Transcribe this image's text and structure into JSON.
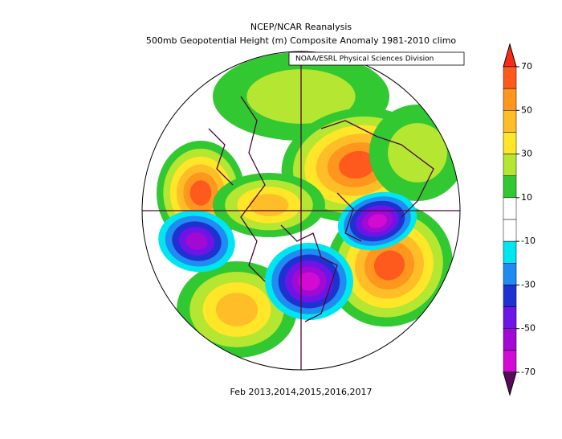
{
  "header": {
    "title": "NCEP/NCAR Reanalysis",
    "subtitle": "500mb Geopotential Height (m) Composite Anomaly 1981-2010 climo",
    "credit": "NOAA/ESRL Physical Sciences Division"
  },
  "footer": {
    "period": "Feb 2013,2014,2015,2016,2017"
  },
  "colorbar": {
    "range": [
      -70,
      70
    ],
    "ticks": [
      70,
      50,
      30,
      10,
      -10,
      -30,
      -50,
      -70
    ],
    "levels": [
      70,
      60,
      50,
      40,
      30,
      20,
      10,
      0,
      -10,
      -20,
      -30,
      -40,
      -50,
      -60,
      -70
    ],
    "colors": [
      "#ff2a14",
      "#ff5a1e",
      "#ff961e",
      "#ffbe28",
      "#ffe628",
      "#b4e632",
      "#32c832",
      "#ffffff",
      "#ffffff",
      "#00e6f0",
      "#1e8cf0",
      "#1e32d2",
      "#6e14e6",
      "#a00ad2",
      "#d20ad2",
      "#5a0a5a"
    ]
  }
}
